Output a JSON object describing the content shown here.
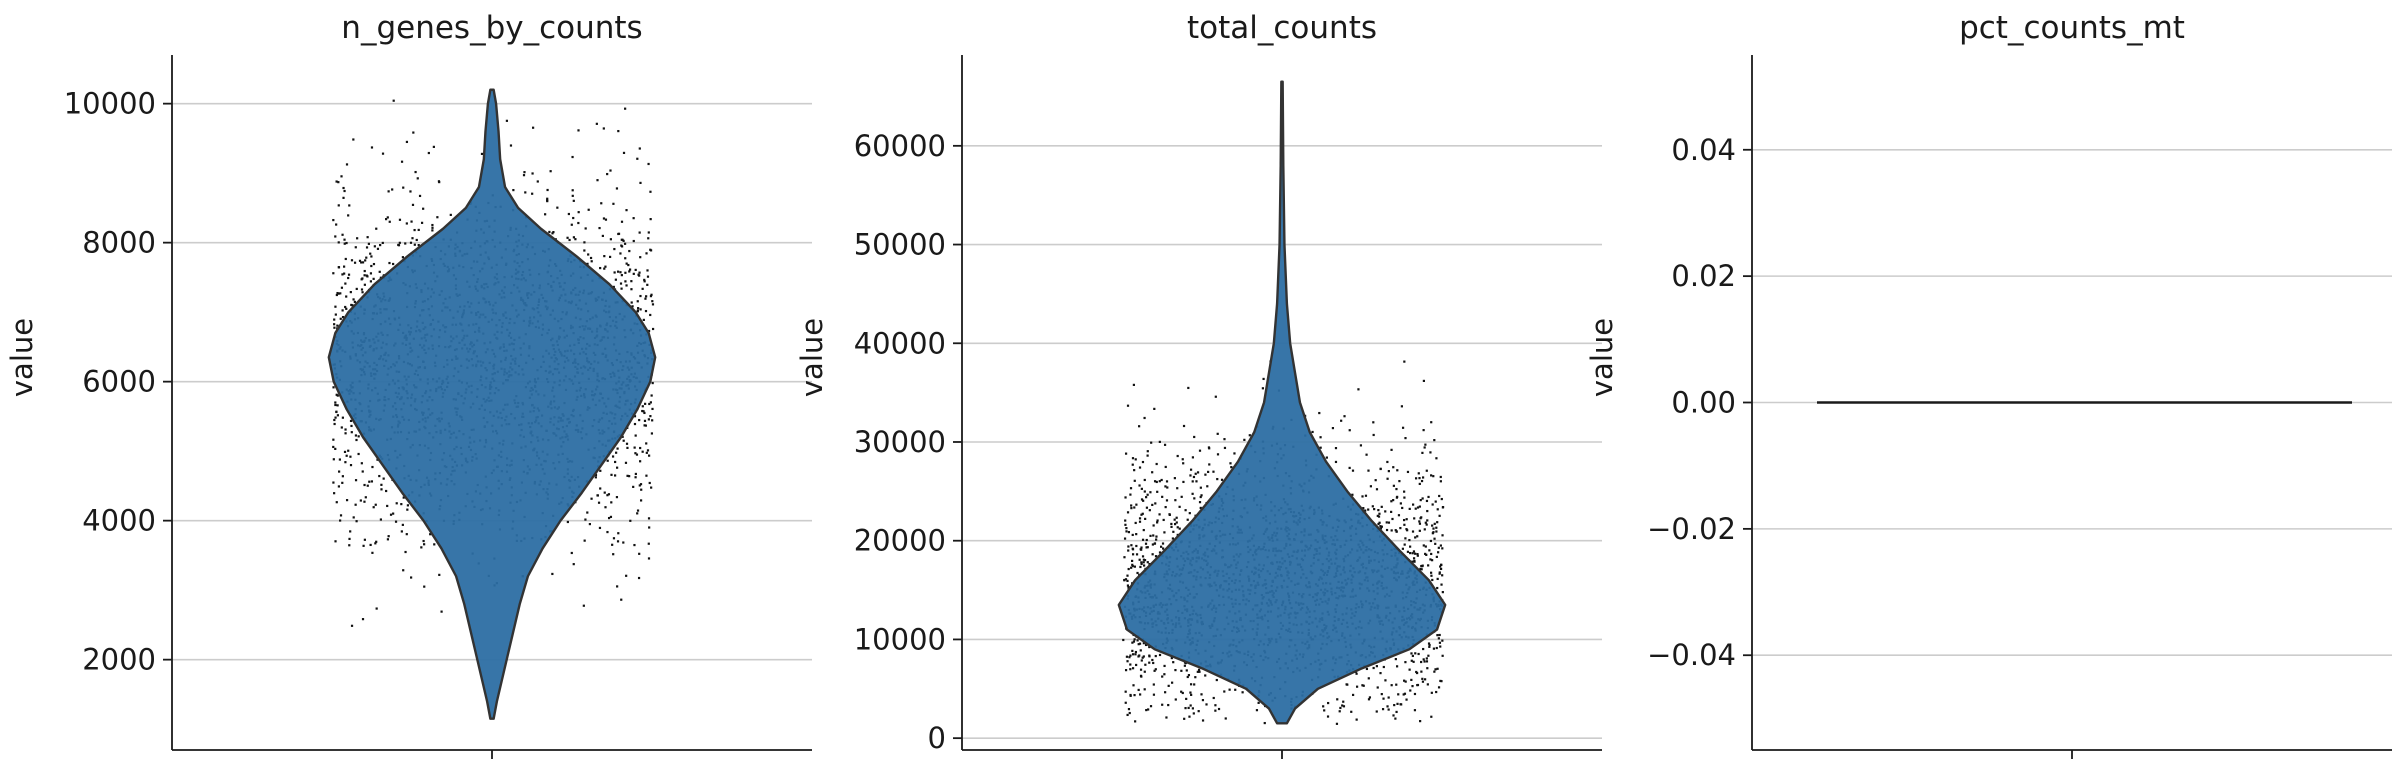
{
  "chart_data": [
    {
      "type": "violin",
      "title": "n_genes_by_counts",
      "ylabel": "value",
      "xlabel": "",
      "ylim": [
        700,
        10700
      ],
      "yticks": [
        2000,
        4000,
        6000,
        8000,
        10000
      ],
      "ytick_labels": [
        "2000",
        "4000",
        "6000",
        "8000",
        "10000"
      ],
      "grid": "horizontal",
      "fill_color": "#2c6ea3",
      "density_profile": [
        [
          1150,
          0.01
        ],
        [
          1400,
          0.03
        ],
        [
          1700,
          0.06
        ],
        [
          2000,
          0.09
        ],
        [
          2400,
          0.13
        ],
        [
          2800,
          0.17
        ],
        [
          3200,
          0.22
        ],
        [
          3600,
          0.31
        ],
        [
          4000,
          0.42
        ],
        [
          4400,
          0.55
        ],
        [
          4800,
          0.67
        ],
        [
          5200,
          0.79
        ],
        [
          5600,
          0.89
        ],
        [
          6000,
          0.97
        ],
        [
          6350,
          1.0
        ],
        [
          6700,
          0.96
        ],
        [
          7000,
          0.88
        ],
        [
          7400,
          0.72
        ],
        [
          7800,
          0.52
        ],
        [
          8200,
          0.3
        ],
        [
          8500,
          0.16
        ],
        [
          8800,
          0.08
        ],
        [
          9200,
          0.05
        ],
        [
          9600,
          0.04
        ],
        [
          10000,
          0.025
        ],
        [
          10200,
          0.01
        ]
      ],
      "points": {
        "count": 2200,
        "center": 6300,
        "spread": 1250,
        "min": 1150,
        "max": 10200
      }
    },
    {
      "type": "violin",
      "title": "total_counts",
      "ylabel": "value",
      "xlabel": "",
      "ylim": [
        -1200,
        69200
      ],
      "yticks": [
        0,
        10000,
        20000,
        30000,
        40000,
        50000,
        60000
      ],
      "ytick_labels": [
        "0",
        "10000",
        "20000",
        "30000",
        "40000",
        "50000",
        "60000"
      ],
      "grid": "horizontal",
      "fill_color": "#2c6ea3",
      "density_profile": [
        [
          1500,
          0.03
        ],
        [
          3000,
          0.08
        ],
        [
          5000,
          0.22
        ],
        [
          7000,
          0.48
        ],
        [
          9000,
          0.78
        ],
        [
          11000,
          0.95
        ],
        [
          13500,
          1.0
        ],
        [
          16000,
          0.9
        ],
        [
          19000,
          0.72
        ],
        [
          22000,
          0.55
        ],
        [
          25000,
          0.4
        ],
        [
          28000,
          0.27
        ],
        [
          31000,
          0.17
        ],
        [
          34000,
          0.11
        ],
        [
          37000,
          0.08
        ],
        [
          40000,
          0.05
        ],
        [
          44000,
          0.03
        ],
        [
          50000,
          0.015
        ],
        [
          58000,
          0.008
        ],
        [
          66500,
          0.004
        ]
      ],
      "points": {
        "count": 2200,
        "center": 15500,
        "spread": 7000,
        "min": 1500,
        "max": 66500
      }
    },
    {
      "type": "violin",
      "title": "pct_counts_mt",
      "ylabel": "value",
      "xlabel": "",
      "ylim": [
        -0.055,
        0.055
      ],
      "yticks": [
        -0.04,
        -0.02,
        0.0,
        0.02,
        0.04
      ],
      "ytick_labels": [
        "−0.04",
        "−0.02",
        "0.00",
        "0.02",
        "0.04"
      ],
      "grid": "horizontal",
      "constant_value": 0.0
    }
  ]
}
